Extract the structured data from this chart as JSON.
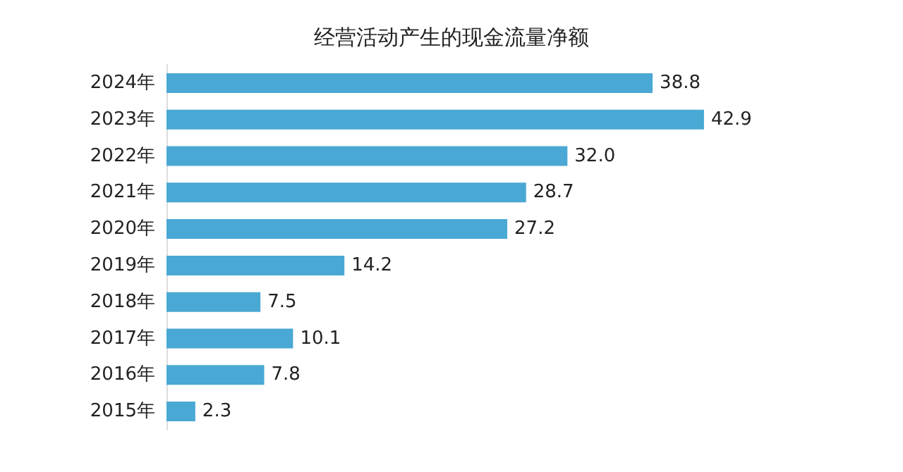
{
  "chart_data": {
    "type": "bar",
    "orientation": "horizontal",
    "title": "经营活动产生的现金流量净额",
    "categories": [
      "2024年",
      "2023年",
      "2022年",
      "2021年",
      "2020年",
      "2019年",
      "2018年",
      "2017年",
      "2016年",
      "2015年"
    ],
    "values": [
      38.8,
      42.9,
      32.0,
      28.7,
      27.2,
      14.2,
      7.5,
      10.1,
      7.8,
      2.3
    ],
    "value_labels": [
      "38.8",
      "42.9",
      "32.0",
      "28.7",
      "27.2",
      "14.2",
      "7.5",
      "10.1",
      "7.8",
      "2.3"
    ],
    "color": "#4aa8d4"
  }
}
